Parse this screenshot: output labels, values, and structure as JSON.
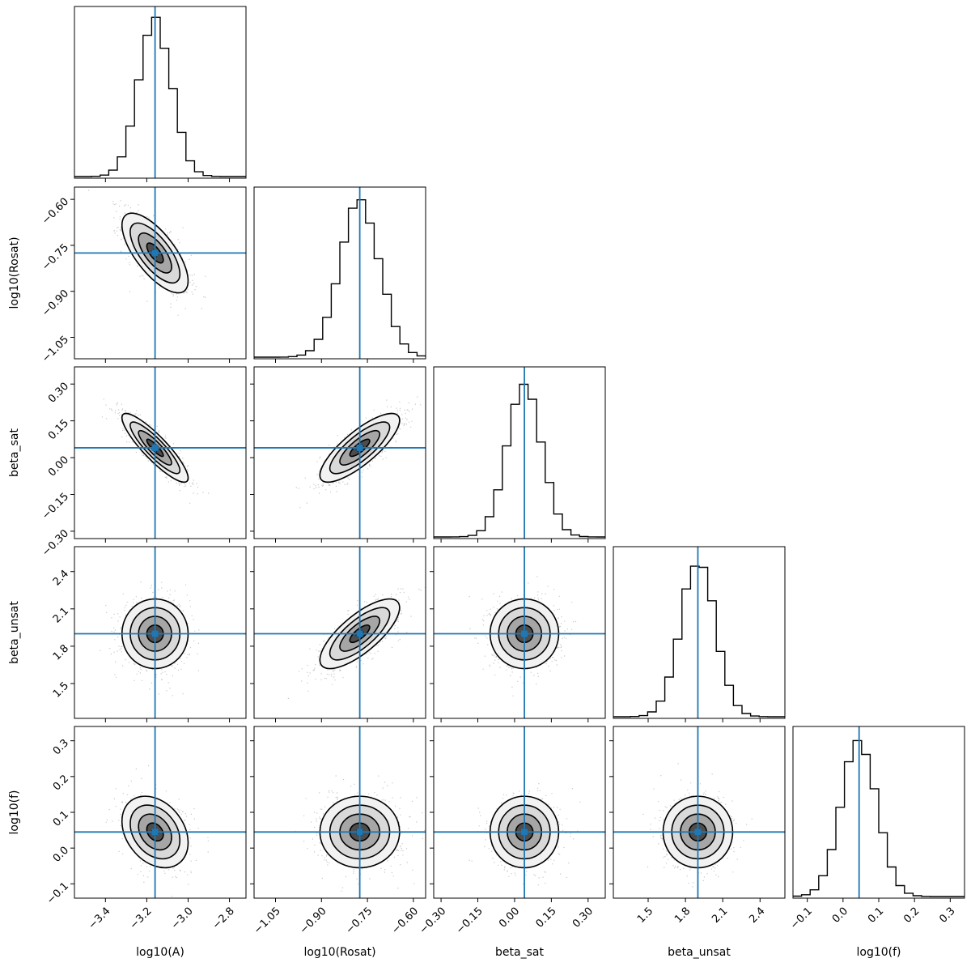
{
  "chart_data": {
    "type": "corner",
    "title": "",
    "truth_color": "#1f77b4",
    "parameters": [
      {
        "name": "log10(A)",
        "truth": -3.16,
        "range": [
          -3.55,
          -2.72
        ],
        "mean": -3.16,
        "sd": 0.08,
        "ticks": [
          -3.4,
          -3.2,
          -3.0,
          -2.8
        ],
        "tick_labels": [
          "−3.4",
          "−3.2",
          "−3.0",
          "−2.8"
        ]
      },
      {
        "name": "log10(Rosat)",
        "truth": -0.775,
        "range": [
          -1.12,
          -0.56
        ],
        "mean": -0.775,
        "sd": 0.065,
        "ticks": [
          -1.05,
          -0.9,
          -0.75,
          -0.6
        ],
        "tick_labels": [
          "−1.05",
          "−0.90",
          "−0.75",
          "−0.60"
        ]
      },
      {
        "name": "beta_sat",
        "truth": 0.04,
        "range": [
          -0.33,
          0.37
        ],
        "mean": 0.04,
        "sd": 0.07,
        "ticks": [
          -0.3,
          -0.15,
          0.0,
          0.15,
          0.3
        ],
        "tick_labels": [
          "−0.30",
          "−0.15",
          "0.00",
          "0.15",
          "0.30"
        ]
      },
      {
        "name": "beta_unsat",
        "truth": 1.9,
        "range": [
          1.22,
          2.6
        ],
        "mean": 1.9,
        "sd": 0.14,
        "ticks": [
          1.5,
          1.8,
          2.1,
          2.4
        ],
        "tick_labels": [
          "1.5",
          "1.8",
          "2.1",
          "2.4"
        ]
      },
      {
        "name": "log10(f)",
        "truth": 0.045,
        "range": [
          -0.14,
          0.34
        ],
        "mean": 0.045,
        "sd": 0.05,
        "ticks": [
          -0.1,
          0.0,
          0.1,
          0.2,
          0.3
        ],
        "tick_labels": [
          "−0.1",
          "0.0",
          "0.1",
          "0.2",
          "0.3"
        ]
      }
    ],
    "correlations": [
      [
        1.0,
        -0.7,
        -0.88,
        0.0,
        -0.3
      ],
      [
        -0.7,
        1.0,
        0.8,
        0.75,
        0.0
      ],
      [
        -0.88,
        0.8,
        1.0,
        0.0,
        0.0
      ],
      [
        0.0,
        0.75,
        0.0,
        1.0,
        0.0
      ],
      [
        -0.3,
        0.0,
        0.0,
        0.0,
        1.0
      ]
    ],
    "histogram": {
      "bins": 20,
      "style": "step"
    },
    "contours": {
      "levels_sigma": [
        0.5,
        1.0,
        1.5,
        2.0
      ],
      "color": "#000000"
    },
    "samples_shown": "grey scatter outside outer contour"
  }
}
